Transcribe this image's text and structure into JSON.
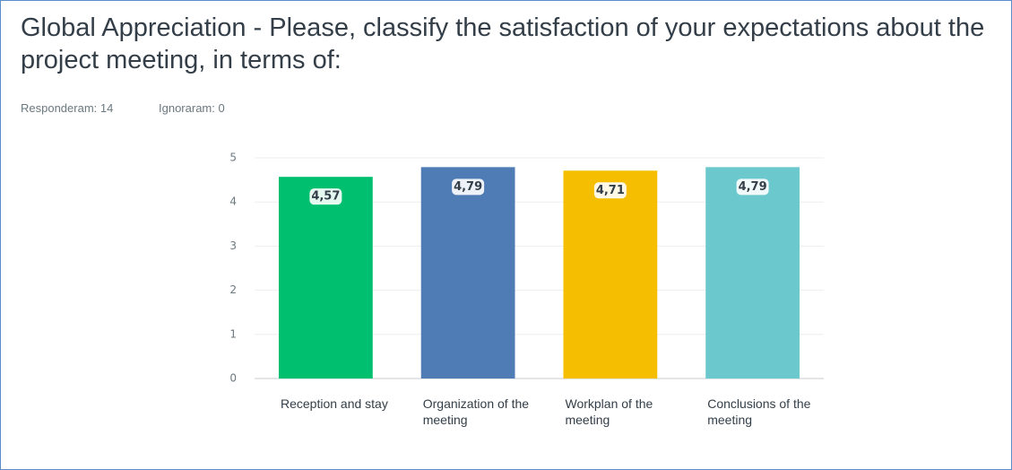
{
  "chart_data": {
    "type": "bar",
    "title": "Global Appreciation - Please, classify the satisfaction of your expectations about the project meeting, in terms of:",
    "stats": [
      "Responderam: 14",
      "Ignoraram: 0"
    ],
    "categories": [
      "Reception and stay",
      "Organization of the meeting",
      "Workplan of the meeting",
      "Conclusions of the meeting"
    ],
    "values": [
      4.57,
      4.79,
      4.71,
      4.79
    ],
    "value_labels": [
      "4,57",
      "4,79",
      "4,71",
      "4,79"
    ],
    "colors": [
      "#00bf6f",
      "#507cb6",
      "#f5be00",
      "#6bc8cd"
    ],
    "ylim": [
      0,
      5
    ],
    "yticks": [
      0,
      1,
      2,
      3,
      4,
      5
    ],
    "grid": true
  }
}
